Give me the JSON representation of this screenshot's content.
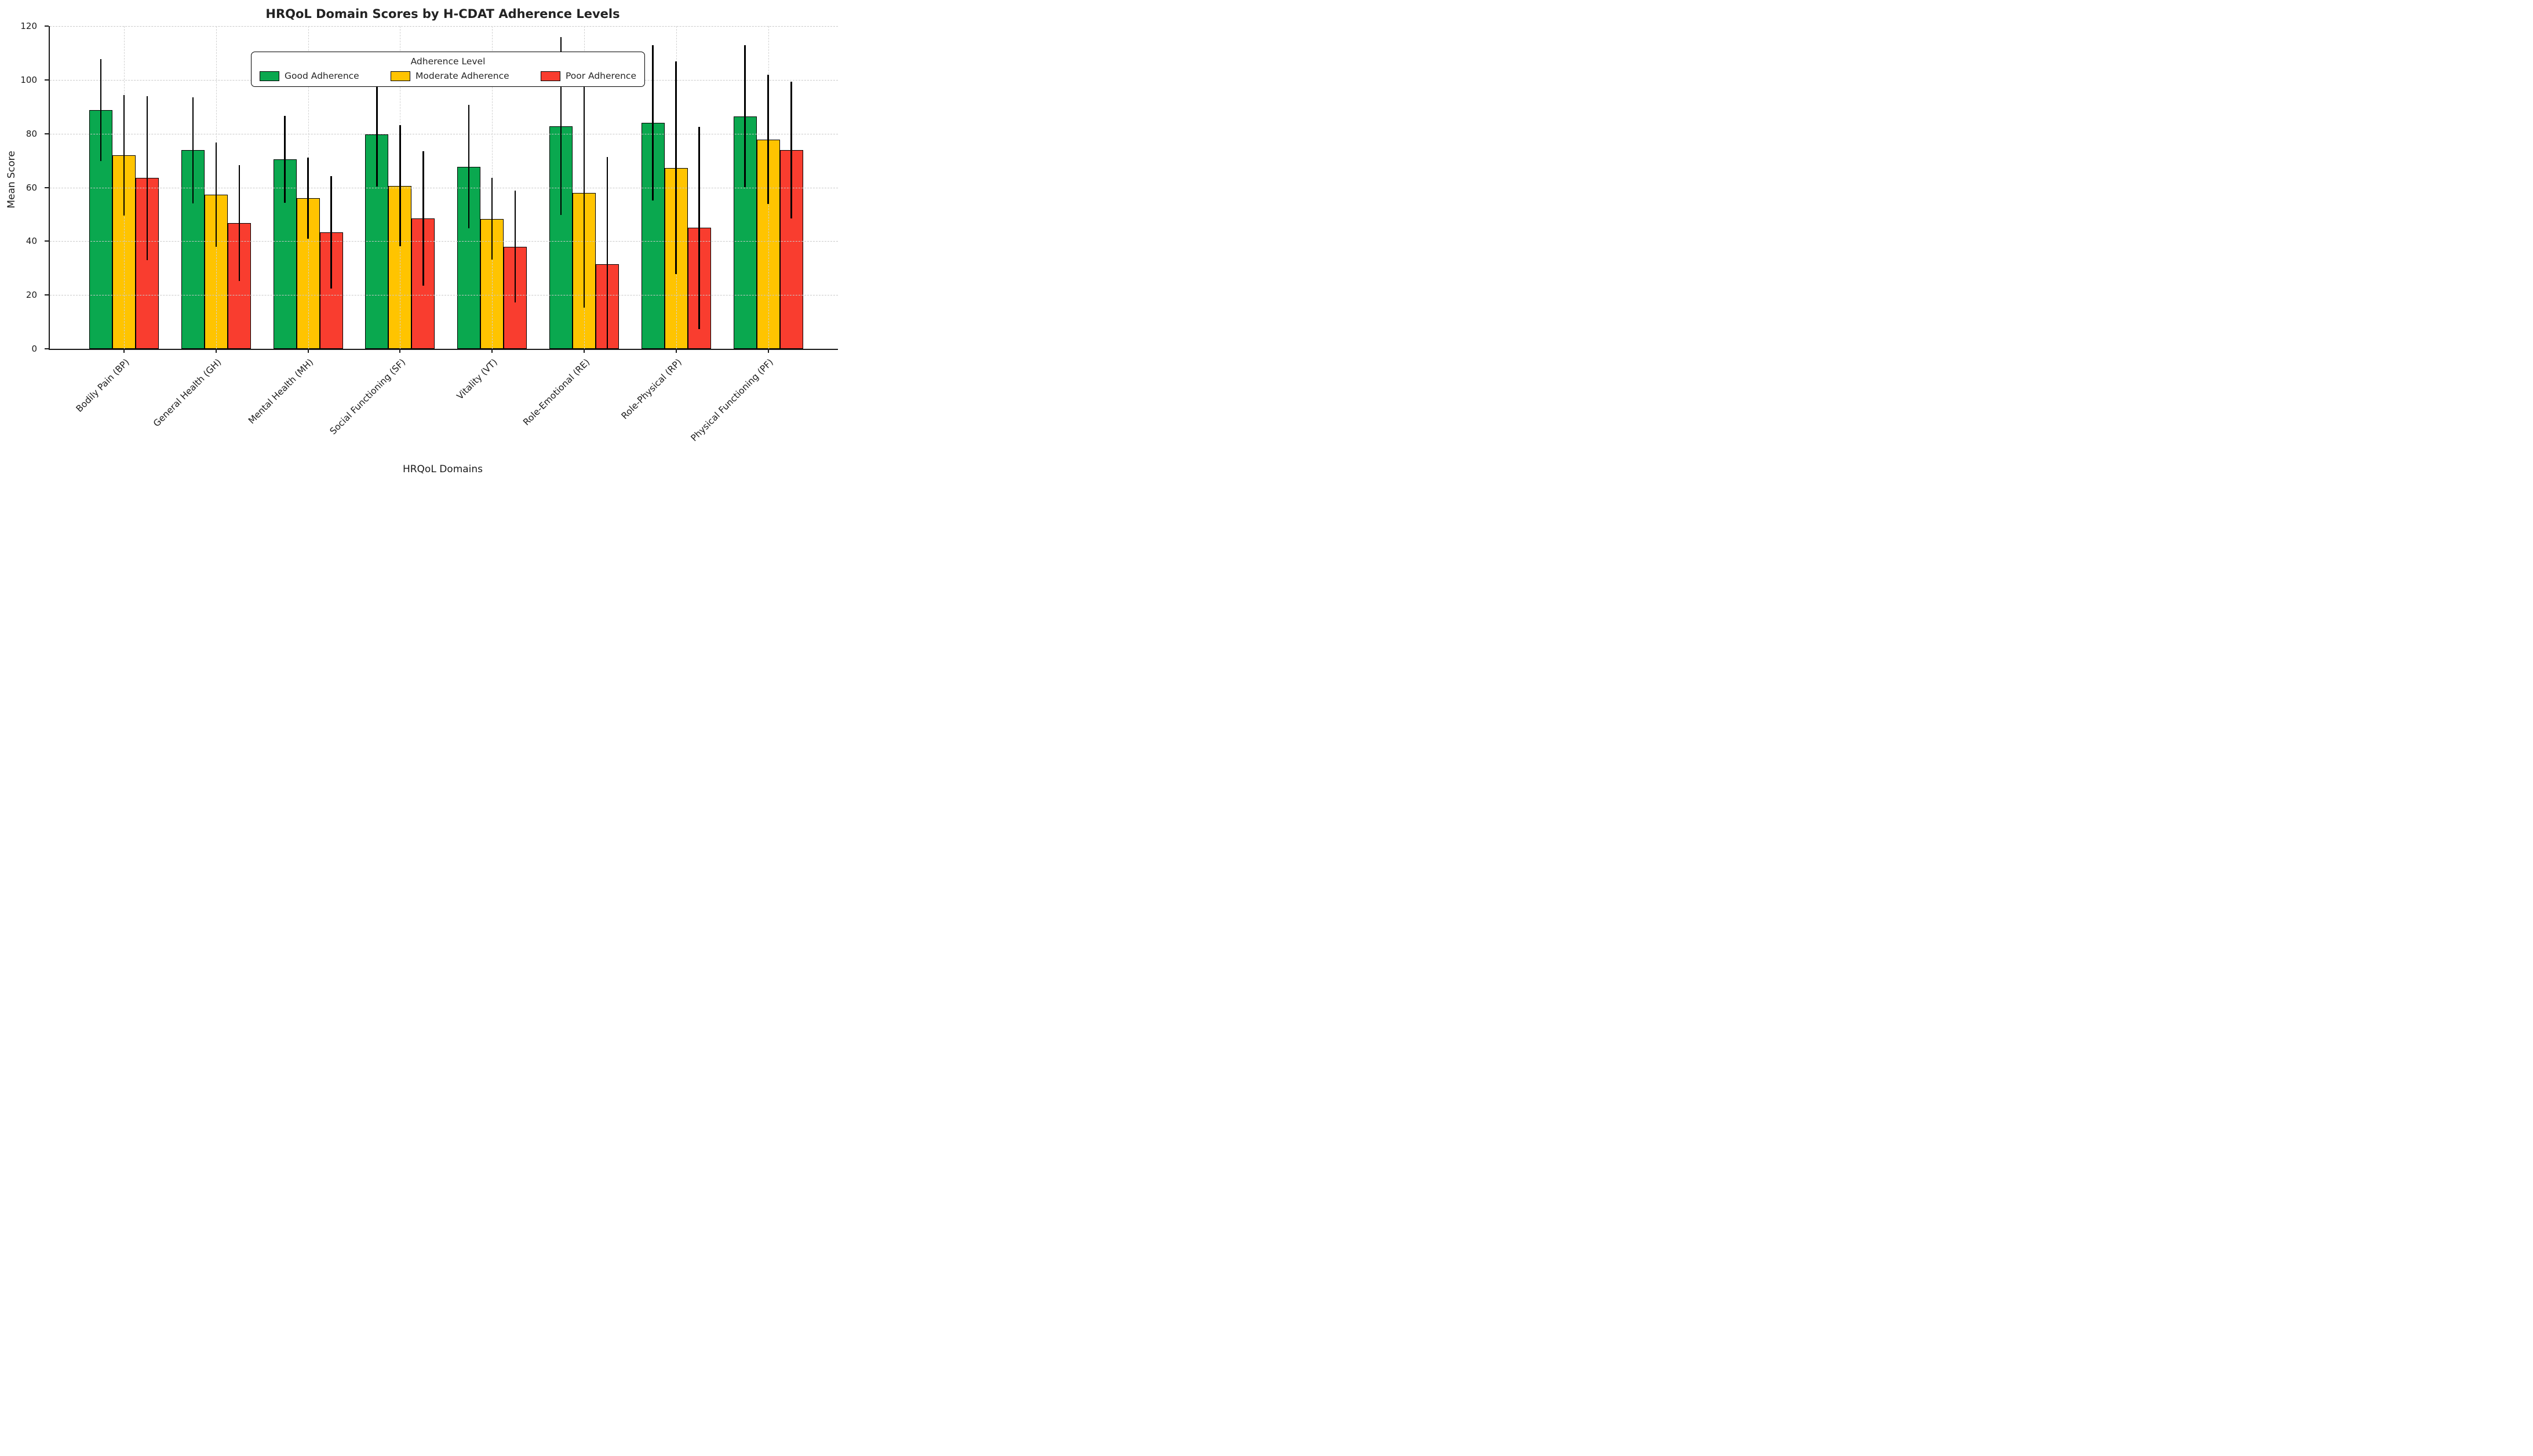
{
  "chart_data": {
    "type": "bar",
    "title": "HRQoL Domain Scores by H-CDAT Adherence Levels",
    "xlabel": "HRQoL Domains",
    "ylabel": "Mean Score",
    "ylim": [
      0,
      120
    ],
    "yticks": [
      0,
      20,
      40,
      60,
      80,
      100,
      120
    ],
    "grid": "dashed horizontal and vertical gridlines, drawn on top of bars",
    "legend_title": "Adherence Level",
    "legend_position": "upper center",
    "error_bars": "symmetric, black vertical lines, clipped at y=0",
    "categories": [
      "Bodily Pain (BP)",
      "General Health (GH)",
      "Mental Health (MH)",
      "Social Functioning (SF)",
      "Vitality (VT)",
      "Role-Emotional (RE)",
      "Role-Physical (RP)",
      "Physical Functioning (PF)"
    ],
    "series": [
      {
        "name": "Good Adherence",
        "color": "#0aa84f",
        "values": [
          88.7,
          73.8,
          70.5,
          79.7,
          67.7,
          82.8,
          84.0,
          86.4
        ],
        "errors": [
          19.0,
          19.8,
          16.2,
          19.3,
          22.9,
          33.0,
          28.8,
          26.4
        ]
      },
      {
        "name": "Moderate Adherence",
        "color": "#ffc400",
        "values": [
          72.0,
          57.4,
          56.0,
          60.6,
          48.3,
          57.9,
          67.3,
          77.8
        ],
        "errors": [
          22.4,
          19.4,
          15.1,
          22.5,
          15.2,
          42.6,
          39.5,
          24.0
        ]
      },
      {
        "name": "Poor Adherence",
        "color": "#f93d2f",
        "values": [
          63.5,
          46.7,
          43.3,
          48.5,
          38.0,
          31.4,
          45.0,
          73.9
        ],
        "errors": [
          30.5,
          21.5,
          20.9,
          25.0,
          20.8,
          40.0,
          37.6,
          25.5
        ]
      }
    ]
  }
}
